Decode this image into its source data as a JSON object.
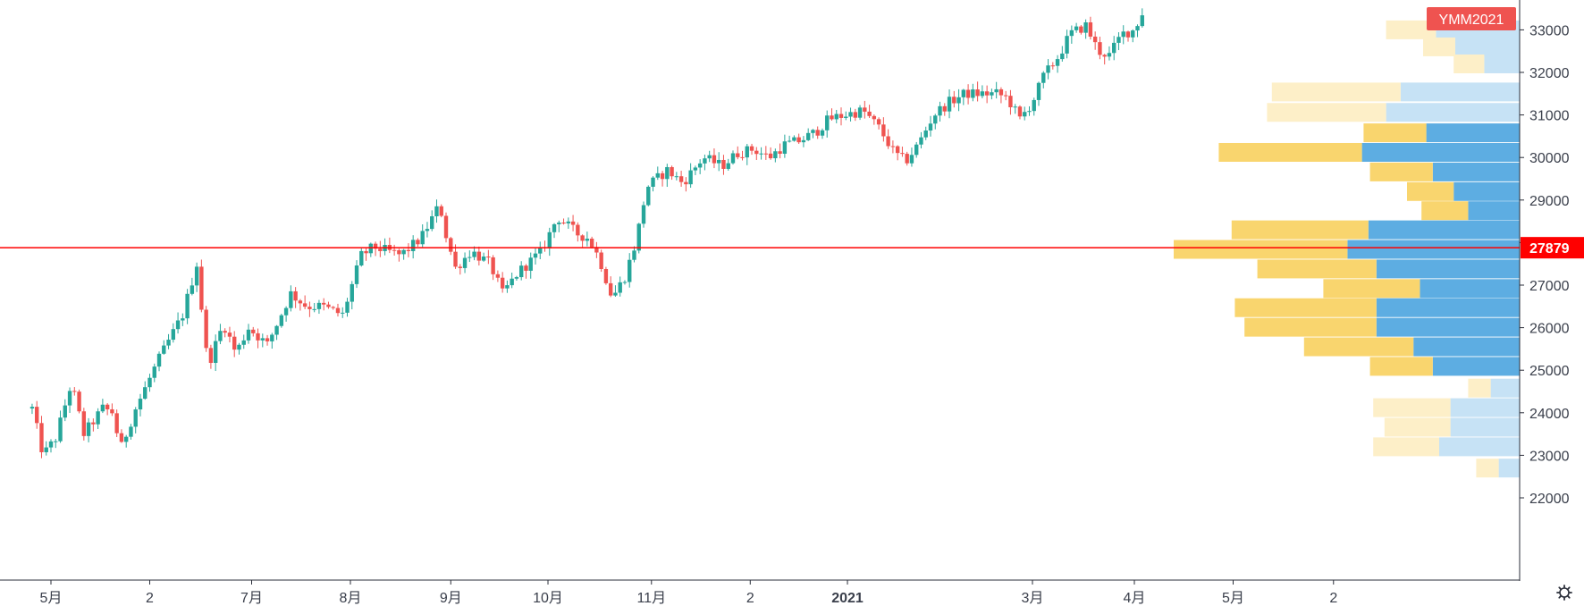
{
  "chart_data": {
    "type": "candlestick",
    "symbol_badge": "YMM2021",
    "current_price": 27879,
    "colors": {
      "up": "#26a69a",
      "down": "#ef5350",
      "price_line": "#ff0000",
      "badge": "#ef5350",
      "vp_up_strong": "#5dade2",
      "vp_down_strong": "#f9d56e",
      "vp_up_light": "#c6e2f5",
      "vp_down_light": "#fdefc8"
    },
    "y_axis": {
      "ylim": [
        21600,
        33900
      ],
      "ticks": [
        22000,
        23000,
        24000,
        25000,
        26000,
        27000,
        28000,
        29000,
        30000,
        31000,
        32000,
        33000
      ]
    },
    "x_axis": {
      "labels": [
        {
          "t": 0.12,
          "text": "5月",
          "bold": false
        },
        {
          "t": 0.75,
          "text": "2",
          "bold": false
        },
        {
          "t": 1.4,
          "text": "7月",
          "bold": false
        },
        {
          "t": 2.03,
          "text": "8月",
          "bold": false
        },
        {
          "t": 2.67,
          "text": "9月",
          "bold": false
        },
        {
          "t": 3.29,
          "text": "10月",
          "bold": false
        },
        {
          "t": 3.95,
          "text": "11月",
          "bold": false
        },
        {
          "t": 4.58,
          "text": "2",
          "bold": false
        },
        {
          "t": 5.2,
          "text": "2021",
          "bold": true
        },
        {
          "t": 6.38,
          "text": "3月",
          "bold": false
        },
        {
          "t": 7.03,
          "text": "4月",
          "bold": false
        },
        {
          "t": 7.66,
          "text": "5月",
          "bold": false
        },
        {
          "t": 8.3,
          "text": "2",
          "bold": false
        }
      ]
    },
    "price_path": [
      [
        0.0,
        24100
      ],
      [
        0.07,
        23000
      ],
      [
        0.15,
        23400
      ],
      [
        0.25,
        24700
      ],
      [
        0.33,
        23500
      ],
      [
        0.45,
        24100
      ],
      [
        0.52,
        24000
      ],
      [
        0.56,
        23100
      ],
      [
        0.66,
        24100
      ],
      [
        0.8,
        25200
      ],
      [
        0.96,
        26300
      ],
      [
        1.05,
        27500
      ],
      [
        1.12,
        25100
      ],
      [
        1.22,
        26100
      ],
      [
        1.3,
        25400
      ],
      [
        1.38,
        26000
      ],
      [
        1.5,
        25600
      ],
      [
        1.65,
        26800
      ],
      [
        1.75,
        26500
      ],
      [
        1.85,
        26500
      ],
      [
        1.98,
        26300
      ],
      [
        2.1,
        27700
      ],
      [
        2.18,
        27900
      ],
      [
        2.35,
        27700
      ],
      [
        2.48,
        28100
      ],
      [
        2.6,
        28900
      ],
      [
        2.63,
        28300
      ],
      [
        2.7,
        27400
      ],
      [
        2.8,
        27800
      ],
      [
        2.92,
        27500
      ],
      [
        3.0,
        26800
      ],
      [
        3.1,
        27300
      ],
      [
        3.25,
        27800
      ],
      [
        3.35,
        28600
      ],
      [
        3.48,
        28200
      ],
      [
        3.55,
        28100
      ],
      [
        3.62,
        27600
      ],
      [
        3.7,
        26700
      ],
      [
        3.78,
        27200
      ],
      [
        3.85,
        28000
      ],
      [
        3.92,
        29300
      ],
      [
        4.05,
        29700
      ],
      [
        4.15,
        29400
      ],
      [
        4.28,
        30000
      ],
      [
        4.4,
        29800
      ],
      [
        4.5,
        30100
      ],
      [
        4.6,
        30200
      ],
      [
        4.7,
        30000
      ],
      [
        4.8,
        30300
      ],
      [
        4.9,
        30400
      ],
      [
        5.0,
        30600
      ],
      [
        5.08,
        30900
      ],
      [
        5.18,
        31000
      ],
      [
        5.3,
        31100
      ],
      [
        5.4,
        30700
      ],
      [
        5.5,
        30100
      ],
      [
        5.57,
        29900
      ],
      [
        5.65,
        30300
      ],
      [
        5.75,
        31000
      ],
      [
        5.85,
        31300
      ],
      [
        5.95,
        31500
      ],
      [
        6.05,
        31500
      ],
      [
        6.15,
        31500
      ],
      [
        6.22,
        31400
      ],
      [
        6.3,
        30900
      ],
      [
        6.38,
        31300
      ],
      [
        6.45,
        31900
      ],
      [
        6.55,
        32400
      ],
      [
        6.62,
        32900
      ],
      [
        6.72,
        33100
      ],
      [
        6.8,
        32500
      ],
      [
        6.87,
        32400
      ],
      [
        6.95,
        32900
      ],
      [
        7.03,
        33000
      ],
      [
        7.08,
        33400
      ]
    ],
    "volume_profile": [
      {
        "price": 33000,
        "up": 0.52,
        "down": 0.31,
        "value_area": false
      },
      {
        "price": 32600,
        "up": 0.4,
        "down": 0.2,
        "value_area": false
      },
      {
        "price": 32200,
        "up": 0.22,
        "down": 0.19,
        "value_area": false
      },
      {
        "price": 31540,
        "up": 0.74,
        "down": 0.8,
        "value_area": false
      },
      {
        "price": 31060,
        "up": 0.83,
        "down": 0.74,
        "value_area": false
      },
      {
        "price": 30580,
        "up": 0.58,
        "down": 0.39,
        "value_area": true
      },
      {
        "price": 30120,
        "up": 0.98,
        "down": 0.89,
        "value_area": true
      },
      {
        "price": 29660,
        "up": 0.54,
        "down": 0.39,
        "value_area": true
      },
      {
        "price": 29200,
        "up": 0.41,
        "down": 0.29,
        "value_area": true
      },
      {
        "price": 28750,
        "up": 0.32,
        "down": 0.29,
        "value_area": true
      },
      {
        "price": 28300,
        "up": 0.94,
        "down": 0.85,
        "value_area": true
      },
      {
        "price": 27840,
        "up": 1.07,
        "down": 1.08,
        "value_area": true
      },
      {
        "price": 27380,
        "up": 0.89,
        "down": 0.74,
        "value_area": true
      },
      {
        "price": 26920,
        "up": 0.62,
        "down": 0.6,
        "value_area": true
      },
      {
        "price": 26470,
        "up": 0.89,
        "down": 0.88,
        "value_area": true
      },
      {
        "price": 26010,
        "up": 0.89,
        "down": 0.82,
        "value_area": true
      },
      {
        "price": 25550,
        "up": 0.66,
        "down": 0.68,
        "value_area": true
      },
      {
        "price": 25090,
        "up": 0.54,
        "down": 0.39,
        "value_area": true
      },
      {
        "price": 24580,
        "up": 0.18,
        "down": 0.14,
        "value_area": false
      },
      {
        "price": 24120,
        "up": 0.43,
        "down": 0.48,
        "value_area": false
      },
      {
        "price": 23660,
        "up": 0.43,
        "down": 0.41,
        "value_area": false
      },
      {
        "price": 23200,
        "up": 0.5,
        "down": 0.41,
        "value_area": false
      },
      {
        "price": 22700,
        "up": 0.13,
        "down": 0.14,
        "value_area": false
      }
    ]
  },
  "gear_icon": "gear-icon"
}
